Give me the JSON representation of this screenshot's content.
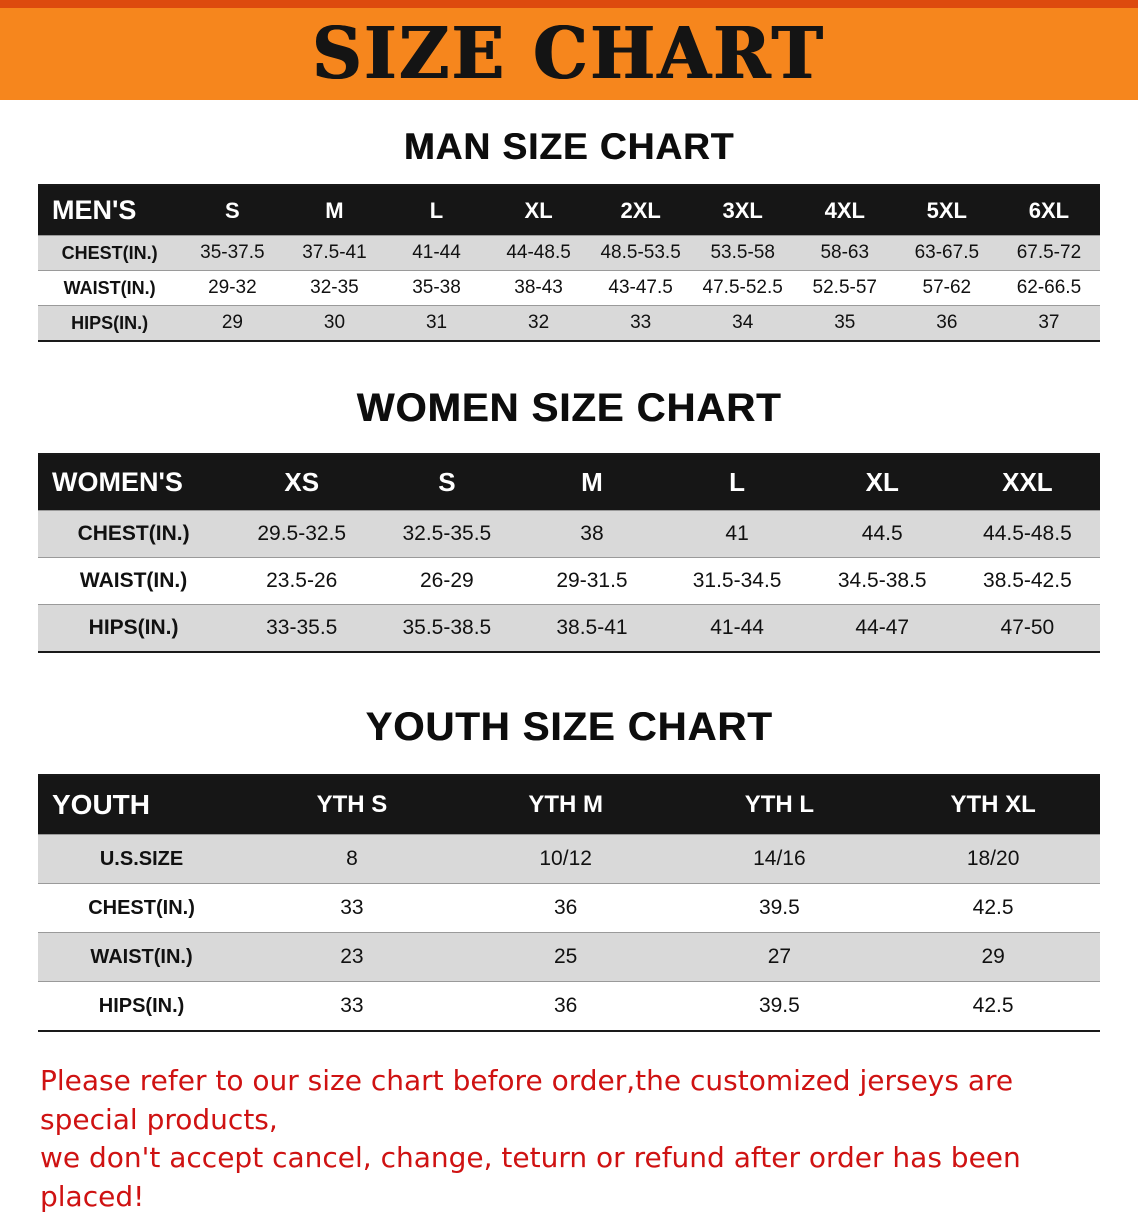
{
  "banner": {
    "title": "SIZE CHART",
    "bg_color": "#f6861d",
    "strip_color": "#dd4a0e",
    "text_color": "#141414"
  },
  "sections": [
    {
      "heading": "MAN SIZE CHART",
      "table": {
        "header": [
          "MEN'S",
          "S",
          "M",
          "L",
          "XL",
          "2XL",
          "3XL",
          "4XL",
          "5XL",
          "6XL"
        ],
        "rows": [
          {
            "label": "CHEST(IN.)",
            "values": [
              "35-37.5",
              "37.5-41",
              "41-44",
              "44-48.5",
              "48.5-53.5",
              "53.5-58",
              "58-63",
              "63-67.5",
              "67.5-72"
            ]
          },
          {
            "label": "WAIST(IN.)",
            "values": [
              "29-32",
              "32-35",
              "35-38",
              "38-43",
              "43-47.5",
              "47.5-52.5",
              "52.5-57",
              "57-62",
              "62-66.5"
            ]
          },
          {
            "label": "HIPS(IN.)",
            "values": [
              "29",
              "30",
              "31",
              "32",
              "33",
              "34",
              "35",
              "36",
              "37"
            ]
          }
        ]
      }
    },
    {
      "heading": "WOMEN SIZE CHART",
      "table": {
        "header": [
          "WOMEN'S",
          "XS",
          "S",
          "M",
          "L",
          "XL",
          "XXL"
        ],
        "rows": [
          {
            "label": "CHEST(IN.)",
            "values": [
              "29.5-32.5",
              "32.5-35.5",
              "38",
              "41",
              "44.5",
              "44.5-48.5"
            ]
          },
          {
            "label": "WAIST(IN.)",
            "values": [
              "23.5-26",
              "26-29",
              "29-31.5",
              "31.5-34.5",
              "34.5-38.5",
              "38.5-42.5"
            ]
          },
          {
            "label": "HIPS(IN.)",
            "values": [
              "33-35.5",
              "35.5-38.5",
              "38.5-41",
              "41-44",
              "44-47",
              "47-50"
            ]
          }
        ]
      }
    },
    {
      "heading": "YOUTH SIZE CHART",
      "table": {
        "header": [
          "YOUTH",
          "YTH S",
          "YTH M",
          "YTH L",
          "YTH XL"
        ],
        "rows": [
          {
            "label": "U.S.SIZE",
            "values": [
              "8",
              "10/12",
              "14/16",
              "18/20"
            ]
          },
          {
            "label": "CHEST(IN.)",
            "values": [
              "33",
              "36",
              "39.5",
              "42.5"
            ]
          },
          {
            "label": "WAIST(IN.)",
            "values": [
              "23",
              "25",
              "27",
              "29"
            ]
          },
          {
            "label": "HIPS(IN.)",
            "values": [
              "33",
              "36",
              "39.5",
              "42.5"
            ]
          }
        ]
      }
    }
  ],
  "footer_note": {
    "line1": "Please refer to our size chart before order,the customized jerseys are special products,",
    "line2": "we don't accept cancel, change, teturn or refund after order has been placed!",
    "text_color": "#cf1212"
  },
  "colors": {
    "table_header_bg": "#161616",
    "table_header_text": "#ffffff",
    "row_stripe": "#d9d9d9"
  }
}
